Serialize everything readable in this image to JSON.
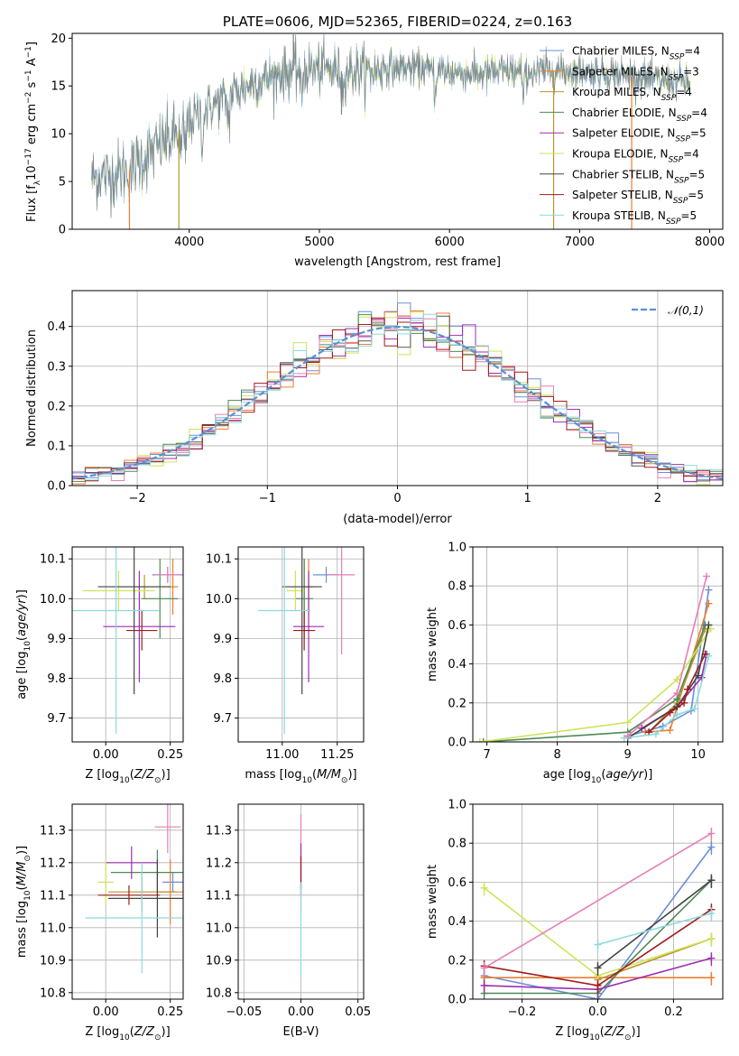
{
  "figure_title": "PLATE=0606, MJD=52365, FIBERID=0224, z=0.163",
  "colors": {
    "chabrier_miles": "#6a8fd6",
    "salpeter_miles": "#ed7d31",
    "kroupa_miles": "#b8962c",
    "chabrier_elodie": "#4e8a55",
    "salpeter_elodie": "#9b2fb0",
    "kroupa_elodie": "#cfe35a",
    "chabrier_stelib": "#444444",
    "salpeter_stelib": "#a11c1c",
    "kroupa_stelib": "#8dd9dc",
    "pink": "#e67fb5",
    "gaussian": "#5b8fd6"
  },
  "chart_data": [
    {
      "id": "spectrum",
      "type": "line",
      "title": "PLATE=0606, MJD=52365, FIBERID=0224, z=0.163",
      "xlabel": "wavelength [Angstrom, rest frame]",
      "ylabel": "Flux [fλ10^-17 erg cm^-2 s^-1 A^-1]",
      "xlim": [
        3100,
        8100
      ],
      "ylim": [
        0,
        20.5
      ],
      "xticks": [
        4000,
        5000,
        6000,
        7000,
        8000
      ],
      "yticks": [
        0,
        5,
        10,
        15,
        20
      ],
      "legend_placement": "top-right",
      "grid": false,
      "series": [
        {
          "name": "Chabrier MILES, N_SSP=4",
          "color": "#6a8fd6"
        },
        {
          "name": "Salpeter MILES, N_SSP=3",
          "color": "#ed7d31"
        },
        {
          "name": "Kroupa MILES, N_SSP=4",
          "color": "#b8962c"
        },
        {
          "name": "Chabrier ELODIE, N_SSP=4",
          "color": "#4e8a55"
        },
        {
          "name": "Salpeter ELODIE, N_SSP=5",
          "color": "#9b2fb0"
        },
        {
          "name": "Kroupa ELODIE, N_SSP=4",
          "color": "#cfe35a"
        },
        {
          "name": "Chabrier STELIB, N_SSP=5",
          "color": "#444444"
        },
        {
          "name": "Salpeter STELIB, N_SSP=5",
          "color": "#a11c1c"
        },
        {
          "name": "Kroupa STELIB, N_SSP=5",
          "color": "#8dd9dc"
        }
      ],
      "continuum": {
        "x": [
          3250,
          3400,
          3550,
          3700,
          3850,
          3950,
          4050,
          4200,
          4400,
          4600,
          4800,
          5000,
          5200,
          5400,
          5600,
          5800,
          6000,
          6200,
          6400,
          6600,
          6800,
          7000,
          7200,
          7400,
          7600,
          7800
        ],
        "y": [
          5.3,
          5.6,
          6.2,
          8.0,
          9.5,
          10.5,
          11.8,
          13.2,
          14.8,
          15.8,
          16.6,
          16.8,
          16.5,
          16.6,
          16.9,
          16.8,
          16.4,
          16.3,
          16.4,
          16.5,
          16.6,
          16.6,
          16.4,
          16.0,
          15.6,
          15.4
        ]
      },
      "spikes": [
        {
          "x": 3540,
          "y": 0.0
        },
        {
          "x": 3920,
          "y": 0.0
        },
        {
          "x": 4800,
          "y": 20.4
        },
        {
          "x": 5170,
          "y": 12.0
        },
        {
          "x": 6800,
          "y": 0.0
        },
        {
          "x": 7400,
          "y": 0.0
        }
      ]
    },
    {
      "id": "residual-histogram",
      "type": "histogram",
      "xlabel": "(data-model)/error",
      "ylabel": "Normed distribution",
      "xlim": [
        -2.5,
        2.5
      ],
      "ylim": [
        0,
        0.49
      ],
      "xticks": [
        -2,
        -1,
        0,
        1,
        2
      ],
      "yticks": [
        0.0,
        0.1,
        0.2,
        0.3,
        0.4
      ],
      "grid": true,
      "bin_width": 0.1,
      "legend": [
        "𝒩(0,1)"
      ],
      "gaussian": {
        "mean": 0,
        "sigma": 1
      }
    },
    {
      "id": "age-vs-Z",
      "type": "errorbar",
      "xlabel": "Z [log10(Z/Z⊙)]",
      "ylabel": "age [log10(age/yr)]",
      "xlim": [
        -0.13,
        0.3
      ],
      "ylim": [
        9.64,
        10.13
      ],
      "xticks": [
        0.0,
        0.25
      ],
      "yticks": [
        9.7,
        9.8,
        9.9,
        10.0,
        10.1
      ],
      "points": [
        {
          "x": 0.24,
          "y": 10.06,
          "xerr": 0.06,
          "yerr": 0.02,
          "color": "#6a8fd6"
        },
        {
          "x": 0.26,
          "y": 10.03,
          "xerr": 0.02,
          "yerr": 0.07,
          "color": "#ed7d31"
        },
        {
          "x": 0.15,
          "y": 10.03,
          "xerr": 0.12,
          "yerr": 0.03,
          "color": "#b8962c"
        },
        {
          "x": 0.21,
          "y": 10.0,
          "xerr": 0.07,
          "yerr": 0.1,
          "color": "#4e8a55"
        },
        {
          "x": 0.13,
          "y": 9.93,
          "xerr": 0.14,
          "yerr": 0.14,
          "color": "#9b2fb0"
        },
        {
          "x": 0.05,
          "y": 10.02,
          "xerr": 0.14,
          "yerr": 0.05,
          "color": "#cfe35a"
        },
        {
          "x": 0.11,
          "y": 10.03,
          "xerr": 0.14,
          "yerr": 0.27,
          "color": "#444444"
        },
        {
          "x": 0.14,
          "y": 9.92,
          "xerr": 0.06,
          "yerr": 0.05,
          "color": "#a11c1c"
        },
        {
          "x": 0.04,
          "y": 9.97,
          "xerr": 0.17,
          "yerr": 0.31,
          "color": "#8dd9dc"
        },
        {
          "x": 0.24,
          "y": 10.06,
          "xerr": 0.05,
          "yerr": 0.02,
          "color": "#e67fb5"
        }
      ]
    },
    {
      "id": "age-vs-mass",
      "type": "errorbar",
      "xlabel": "mass [log10(M/M⊙)]",
      "ylabel": "",
      "xlim": [
        10.8,
        11.37
      ],
      "ylim": [
        9.64,
        10.13
      ],
      "xticks": [
        11.0,
        11.25
      ],
      "yticks": [
        9.7,
        9.8,
        9.9,
        10.0,
        10.1
      ],
      "points": [
        {
          "x": 11.2,
          "y": 10.06,
          "xerr": 0.06,
          "yerr": 0.02,
          "color": "#6a8fd6"
        },
        {
          "x": 11.12,
          "y": 10.03,
          "xerr": 0.02,
          "yerr": 0.07,
          "color": "#ed7d31"
        },
        {
          "x": 11.1,
          "y": 10.03,
          "xerr": 0.06,
          "yerr": 0.07,
          "color": "#b8962c"
        },
        {
          "x": 11.1,
          "y": 10.0,
          "xerr": 0.04,
          "yerr": 0.1,
          "color": "#4e8a55"
        },
        {
          "x": 11.12,
          "y": 9.93,
          "xerr": 0.07,
          "yerr": 0.14,
          "color": "#9b2fb0"
        },
        {
          "x": 11.06,
          "y": 10.02,
          "xerr": 0.04,
          "yerr": 0.05,
          "color": "#cfe35a"
        },
        {
          "x": 11.09,
          "y": 10.03,
          "xerr": 0.09,
          "yerr": 0.27,
          "color": "#444444"
        },
        {
          "x": 11.1,
          "y": 9.92,
          "xerr": 0.05,
          "yerr": 0.05,
          "color": "#a11c1c"
        },
        {
          "x": 11.01,
          "y": 9.97,
          "xerr": 0.12,
          "yerr": 0.31,
          "color": "#8dd9dc"
        },
        {
          "x": 11.27,
          "y": 10.06,
          "xerr": 0.06,
          "yerr": 0.2,
          "color": "#e67fb5"
        }
      ]
    },
    {
      "id": "mass-weight-vs-age",
      "type": "line",
      "xlabel": "age [log10(age/yr)]",
      "ylabel": "mass weight",
      "xlim": [
        6.8,
        10.35
      ],
      "ylim": [
        0,
        1.0
      ],
      "xticks": [
        7,
        8,
        9,
        10
      ],
      "yticks": [
        0.0,
        0.2,
        0.4,
        0.6,
        0.8,
        1.0
      ],
      "grid": true,
      "series": [
        {
          "color": "#6a8fd6",
          "x": [
            9.0,
            9.5,
            9.9,
            10.15
          ],
          "y": [
            0.03,
            0.08,
            0.16,
            0.78
          ]
        },
        {
          "color": "#ed7d31",
          "x": [
            9.25,
            9.6,
            10.15
          ],
          "y": [
            0.05,
            0.06,
            0.71
          ]
        },
        {
          "color": "#b8962c",
          "x": [
            9.3,
            9.7,
            10.1
          ],
          "y": [
            0.05,
            0.2,
            0.58
          ]
        },
        {
          "color": "#4e8a55",
          "x": [
            6.95,
            9.0,
            9.7,
            10.1
          ],
          "y": [
            0.0,
            0.05,
            0.22,
            0.6
          ]
        },
        {
          "color": "#9b2fb0",
          "x": [
            9.2,
            9.7,
            10.05,
            10.12
          ],
          "y": [
            0.07,
            0.18,
            0.33,
            0.45
          ]
        },
        {
          "color": "#cfe35a",
          "x": [
            6.9,
            9.0,
            9.7,
            10.18
          ],
          "y": [
            0.0,
            0.1,
            0.32,
            0.58
          ]
        },
        {
          "color": "#444444",
          "x": [
            9.0,
            9.7,
            10.0,
            10.15
          ],
          "y": [
            0.02,
            0.18,
            0.34,
            0.6
          ]
        },
        {
          "color": "#a11c1c",
          "x": [
            9.3,
            9.6,
            9.8,
            9.85,
            10.1
          ],
          "y": [
            0.05,
            0.15,
            0.2,
            0.27,
            0.45
          ]
        },
        {
          "color": "#8dd9dc",
          "x": [
            8.95,
            9.4,
            9.7,
            9.95,
            10.15
          ],
          "y": [
            0.02,
            0.04,
            0.14,
            0.17,
            0.44
          ]
        },
        {
          "color": "#e67fb5",
          "x": [
            9.0,
            9.7,
            10.12
          ],
          "y": [
            0.03,
            0.25,
            0.85
          ]
        }
      ]
    },
    {
      "id": "mass-vs-Z",
      "type": "errorbar",
      "xlabel": "Z [log10(Z/Z⊙)]",
      "ylabel": "mass [log10(M/M⊙)]",
      "xlim": [
        -0.13,
        0.3
      ],
      "ylim": [
        10.78,
        11.38
      ],
      "xticks": [
        0.0,
        0.25
      ],
      "yticks": [
        10.8,
        10.9,
        11.0,
        11.1,
        11.2,
        11.3
      ],
      "points": [
        {
          "x": 0.26,
          "y": 11.14,
          "xerr": 0.04,
          "yerr": 0.03,
          "color": "#6a8fd6"
        },
        {
          "x": 0.25,
          "y": 11.11,
          "xerr": 0.05,
          "yerr": 0.1,
          "color": "#ed7d31"
        },
        {
          "x": 0.14,
          "y": 11.11,
          "xerr": 0.13,
          "yerr": 0.06,
          "color": "#b8962c"
        },
        {
          "x": 0.2,
          "y": 11.17,
          "xerr": 0.18,
          "yerr": 0.07,
          "color": "#4e8a55"
        },
        {
          "x": 0.1,
          "y": 11.2,
          "xerr": 0.1,
          "yerr": 0.05,
          "color": "#9b2fb0"
        },
        {
          "x": 0.0,
          "y": 11.14,
          "xerr": 0.03,
          "yerr": 0.07,
          "color": "#cfe35a"
        },
        {
          "x": 0.2,
          "y": 11.09,
          "xerr": 0.19,
          "yerr": 0.12,
          "color": "#444444"
        },
        {
          "x": 0.09,
          "y": 11.1,
          "xerr": 0.12,
          "yerr": 0.03,
          "color": "#a11c1c"
        },
        {
          "x": 0.14,
          "y": 11.03,
          "xerr": 0.22,
          "yerr": 0.17,
          "color": "#8dd9dc"
        },
        {
          "x": 0.24,
          "y": 11.31,
          "xerr": 0.05,
          "yerr": 0.08,
          "color": "#e67fb5"
        }
      ]
    },
    {
      "id": "mass-vs-EBV",
      "type": "errorbar",
      "xlabel": "E(B-V)",
      "ylabel": "",
      "xlim": [
        -0.055,
        0.055
      ],
      "ylim": [
        10.78,
        11.38
      ],
      "xticks": [
        -0.05,
        0.0,
        0.05
      ],
      "yticks": [
        10.8,
        10.9,
        11.0,
        11.1,
        11.2,
        11.3
      ],
      "points": [
        {
          "x": 0.0,
          "y": 11.2,
          "xerr": 0.0,
          "yerr": 0.15,
          "color": "#e67fb5"
        },
        {
          "x": 0.0,
          "y": 11.18,
          "xerr": 0.0,
          "yerr": 0.08,
          "color": "#9b2fb0"
        },
        {
          "x": 0.0,
          "y": 11.17,
          "xerr": 0.0,
          "yerr": 0.05,
          "color": "#a11c1c"
        },
        {
          "x": 0.0,
          "y": 10.99,
          "xerr": 0.0,
          "yerr": 0.15,
          "color": "#8dd9dc"
        }
      ]
    },
    {
      "id": "mass-weight-vs-Z",
      "type": "line",
      "xlabel": "Z [log10(Z/Z⊙)]",
      "ylabel": "mass weight",
      "xlim": [
        -0.33,
        0.33
      ],
      "ylim": [
        0,
        1.0
      ],
      "xticks": [
        -0.2,
        0.0,
        0.2
      ],
      "yticks": [
        0.0,
        0.2,
        0.4,
        0.6,
        0.8,
        1.0
      ],
      "grid": true,
      "series": [
        {
          "color": "#6a8fd6",
          "x": [
            -0.3,
            0.0,
            0.3
          ],
          "y": [
            0.12,
            0.0,
            0.78
          ]
        },
        {
          "color": "#ed7d31",
          "x": [
            -0.3,
            0.0,
            0.3
          ],
          "y": [
            0.11,
            0.11,
            0.11
          ]
        },
        {
          "color": "#b8962c",
          "x": [
            0.0,
            0.3
          ],
          "y": [
            0.1,
            0.31
          ]
        },
        {
          "color": "#4e8a55",
          "x": [
            -0.3,
            0.0,
            0.3
          ],
          "y": [
            0.03,
            0.03,
            0.61
          ]
        },
        {
          "color": "#9b2fb0",
          "x": [
            -0.3,
            0.0,
            0.3
          ],
          "y": [
            0.07,
            0.05,
            0.21
          ]
        },
        {
          "color": "#cfe35a",
          "x": [
            -0.3,
            0.0,
            0.3
          ],
          "y": [
            0.57,
            0.12,
            0.31
          ]
        },
        {
          "color": "#444444",
          "x": [
            0.0,
            0.3
          ],
          "y": [
            0.16,
            0.61
          ]
        },
        {
          "color": "#a11c1c",
          "x": [
            -0.3,
            0.0,
            0.3
          ],
          "y": [
            0.17,
            0.07,
            0.46
          ]
        },
        {
          "color": "#8dd9dc",
          "x": [
            0.0,
            0.3
          ],
          "y": [
            0.28,
            0.44
          ]
        },
        {
          "color": "#e67fb5",
          "x": [
            -0.3,
            0.3
          ],
          "y": [
            0.16,
            0.85
          ]
        }
      ]
    }
  ]
}
